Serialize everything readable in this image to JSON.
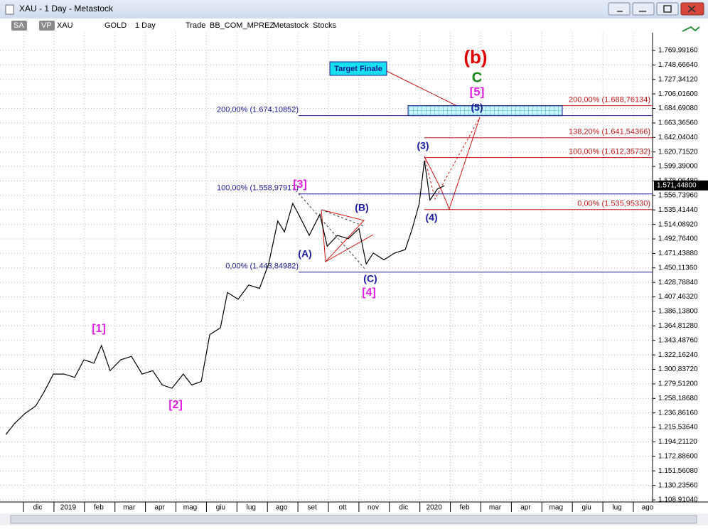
{
  "window": {
    "title": "XAU - 1 Day - Metastock"
  },
  "toolbar": {
    "items": [
      "SA",
      "VP",
      "XAU",
      "GOLD",
      "1 Day",
      "Trade",
      "BB_COM_MPREZ",
      "Metastock",
      "Stocks"
    ]
  },
  "chart_data": {
    "type": "line",
    "color": "#000000",
    "x": [
      -0.58,
      -0.3,
      0.05,
      0.4,
      0.68,
      0.98,
      1.33,
      1.68,
      1.98,
      2.31,
      2.56,
      2.84,
      3.19,
      3.54,
      3.89,
      4.24,
      4.55,
      4.87,
      5.24,
      5.52,
      5.83,
      6.11,
      6.46,
      6.69,
      7.04,
      7.39,
      7.74,
      8.04,
      8.34,
      8.56,
      8.83,
      9.02,
      9.37,
      9.72,
      9.96,
      10.3,
      10.65,
      11.0,
      11.24,
      11.47,
      11.82,
      12.17,
      12.52,
      12.75,
      12.98,
      13.15,
      13.33,
      13.57,
      13.8
    ],
    "values": [
      1205,
      1221,
      1236,
      1247,
      1268,
      1294,
      1294,
      1289,
      1315,
      1310,
      1336,
      1299,
      1315,
      1320,
      1294,
      1299,
      1278,
      1273,
      1294,
      1278,
      1283,
      1352,
      1362,
      1414,
      1404,
      1425,
      1420,
      1456,
      1519,
      1503,
      1545,
      1529,
      1498,
      1529,
      1482,
      1498,
      1493,
      1508,
      1456,
      1472,
      1462,
      1472,
      1477,
      1508,
      1545,
      1608,
      1550,
      1566,
      1571
    ],
    "xlim": [
      -0.77,
      20.63
    ],
    "ylim": [
      1105.8,
      1796.1
    ],
    "grid": true,
    "xticks": [
      {
        "value": 0,
        "label": "dic"
      },
      {
        "value": 1,
        "label": "2019"
      },
      {
        "value": 2,
        "label": "feb"
      },
      {
        "value": 3,
        "label": "mar"
      },
      {
        "value": 4,
        "label": "apr"
      },
      {
        "value": 5,
        "label": "mag"
      },
      {
        "value": 6,
        "label": "giu"
      },
      {
        "value": 7,
        "label": "lug"
      },
      {
        "value": 8,
        "label": "ago"
      },
      {
        "value": 9,
        "label": "set"
      },
      {
        "value": 10,
        "label": "ott"
      },
      {
        "value": 11,
        "label": "nov"
      },
      {
        "value": 12,
        "label": "dic"
      },
      {
        "value": 13,
        "label": "2020"
      },
      {
        "value": 14,
        "label": "feb"
      },
      {
        "value": 15,
        "label": "mar"
      },
      {
        "value": 16,
        "label": "apr"
      },
      {
        "value": 17,
        "label": "mag"
      },
      {
        "value": 18,
        "label": "giu"
      },
      {
        "value": 19,
        "label": "lug"
      },
      {
        "value": 20,
        "label": "ago"
      }
    ],
    "yticks": [
      {
        "value": 1769.9916,
        "label": "1.769,99160"
      },
      {
        "value": 1748.6664,
        "label": "1.748,66640"
      },
      {
        "value": 1727.3412,
        "label": "1.727,34120"
      },
      {
        "value": 1706.016,
        "label": "1.706,01600"
      },
      {
        "value": 1684.6908,
        "label": "1.684,69080"
      },
      {
        "value": 1663.3656,
        "label": "1.663,36560"
      },
      {
        "value": 1642.0404,
        "label": "1.642,04040"
      },
      {
        "value": 1620.7152,
        "label": "1.620,71520"
      },
      {
        "value": 1599.39,
        "label": "1.599,39000"
      },
      {
        "value": 1578.0648,
        "label": "1.578,06480"
      },
      {
        "value": 1556.7396,
        "label": "1.556,73960"
      },
      {
        "value": 1535.4144,
        "label": "1.535,41440"
      },
      {
        "value": 1514.0892,
        "label": "1.514,08920"
      },
      {
        "value": 1492.764,
        "label": "1.492,76400"
      },
      {
        "value": 1471.4388,
        "label": "1.471,43880"
      },
      {
        "value": 1450.1136,
        "label": "1.450,11360"
      },
      {
        "value": 1428.7884,
        "label": "1.428,78840"
      },
      {
        "value": 1407.4632,
        "label": "1.407,46320"
      },
      {
        "value": 1386.138,
        "label": "1.386,13800"
      },
      {
        "value": 1364.8128,
        "label": "1.364,81280"
      },
      {
        "value": 1343.4876,
        "label": "1.343,48760"
      },
      {
        "value": 1322.1624,
        "label": "1.322,16240"
      },
      {
        "value": 1300.8372,
        "label": "1.300,83720"
      },
      {
        "value": 1279.512,
        "label": "1.279,51200"
      },
      {
        "value": 1258.1868,
        "label": "1.258,18680"
      },
      {
        "value": 1236.8616,
        "label": "1.236,86160"
      },
      {
        "value": 1215.5364,
        "label": "1.215,53640"
      },
      {
        "value": 1194.2112,
        "label": "1.194,21120"
      },
      {
        "value": 1172.886,
        "label": "1.172,88600"
      },
      {
        "value": 1151.5608,
        "label": "1.151,56080"
      },
      {
        "value": 1130.2356,
        "label": "1.130,23560"
      },
      {
        "value": 1108.9104,
        "label": "1.108,91040"
      }
    ],
    "last_price": {
      "value": 1571.448,
      "label": "1.571,44800"
    },
    "fib_left": [
      {
        "value": 1674.10852,
        "label": "200,00% (1.674,10852)"
      },
      {
        "value": 1558.97917,
        "label": "100,00% (1.558,97917)"
      },
      {
        "value": 1443.84982,
        "label": "0,00% (1.443,84982)"
      }
    ],
    "fib_right": [
      {
        "value": 1688.76134,
        "label": "200,00% (1.688,76134)"
      },
      {
        "value": 1641.54366,
        "label": "138,20% (1.641,54366)"
      },
      {
        "value": 1612.35732,
        "label": "100,00% (1.612,35732)"
      },
      {
        "value": 1535.9533,
        "label": "0,00% (1.535,95330)"
      }
    ],
    "target_label": "Target Finale",
    "waves": [
      {
        "text": "(b)",
        "color": "#e00000"
      },
      {
        "text": "C",
        "color": "#1a8a1a"
      },
      {
        "text": "[5]",
        "color": "#e020e0"
      },
      {
        "text": "(5)",
        "color": "#1a1aa0"
      },
      {
        "text": "(3)",
        "color": "#1a1aa0"
      },
      {
        "text": "(4)",
        "color": "#1a1aa0"
      },
      {
        "text": "[3]",
        "color": "#e020e0"
      },
      {
        "text": "(B)",
        "color": "#1a1aa0"
      },
      {
        "text": "(A)",
        "color": "#1a1aa0"
      },
      {
        "text": "(C)",
        "color": "#1a1aa0"
      },
      {
        "text": "[4]",
        "color": "#e020e0"
      },
      {
        "text": "[1]",
        "color": "#e020e0"
      },
      {
        "text": "[2]",
        "color": "#e020e0"
      }
    ]
  }
}
